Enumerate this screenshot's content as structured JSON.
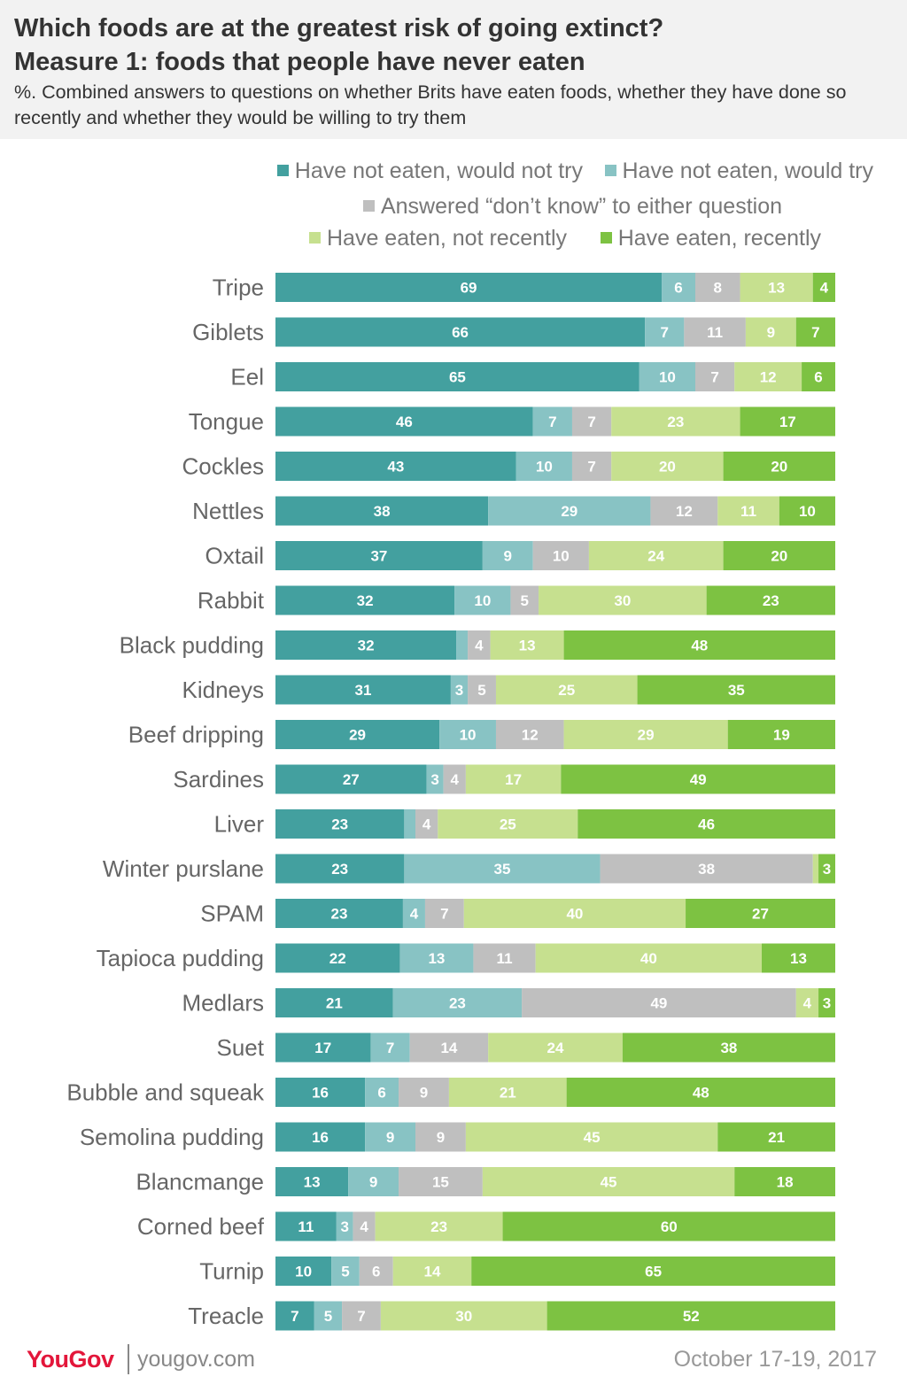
{
  "header": {
    "title_line1": "Which foods are at the greatest risk of going extinct?",
    "title_line2": "Measure 1: foods that people have never eaten",
    "subtitle": "%. Combined answers to questions on whether Brits have eaten foods, whether they have done so recently and whether they would be willing to try them"
  },
  "footer": {
    "brand": "YouGov",
    "url": "yougov.com",
    "date": "October 17-19, 2017"
  },
  "chart_data": {
    "type": "bar",
    "orientation": "horizontal",
    "stacked": true,
    "xlim": [
      0,
      100
    ],
    "categories": [
      "Tripe",
      "Giblets",
      "Eel",
      "Tongue",
      "Cockles",
      "Nettles",
      "Oxtail",
      "Rabbit",
      "Black pudding",
      "Kidneys",
      "Beef dripping",
      "Sardines",
      "Liver",
      "Winter purslane",
      "SPAM",
      "Tapioca pudding",
      "Medlars",
      "Suet",
      "Bubble and squeak",
      "Semolina pudding",
      "Blancmange",
      "Corned beef",
      "Turnip",
      "Treacle"
    ],
    "series": [
      {
        "name": "Have not eaten, would not try",
        "color": "#43a09f",
        "values": [
          69,
          66,
          65,
          46,
          43,
          38,
          37,
          32,
          32,
          31,
          29,
          27,
          23,
          23,
          23,
          22,
          21,
          17,
          16,
          16,
          13,
          11,
          10,
          7
        ]
      },
      {
        "name": "Have not eaten, would try",
        "color": "#88c3c4",
        "values": [
          6,
          7,
          10,
          7,
          10,
          29,
          9,
          10,
          2,
          3,
          10,
          3,
          2,
          35,
          4,
          13,
          23,
          7,
          6,
          9,
          9,
          3,
          5,
          5
        ]
      },
      {
        "name": "Answered “don’t know” to either question",
        "color": "#bfbfbf",
        "values": [
          8,
          11,
          7,
          7,
          7,
          12,
          10,
          5,
          4,
          5,
          12,
          4,
          4,
          38,
          7,
          11,
          49,
          14,
          9,
          9,
          15,
          4,
          6,
          7
        ]
      },
      {
        "name": "Have eaten, not recently",
        "color": "#c6e08f",
        "values": [
          13,
          9,
          12,
          23,
          20,
          11,
          24,
          30,
          13,
          25,
          29,
          17,
          25,
          1,
          40,
          40,
          4,
          24,
          21,
          45,
          45,
          23,
          14,
          30
        ]
      },
      {
        "name": "Have eaten, recently",
        "color": "#7dc242",
        "values": [
          4,
          7,
          6,
          17,
          20,
          10,
          20,
          23,
          48,
          35,
          19,
          49,
          46,
          3,
          27,
          13,
          3,
          38,
          48,
          21,
          18,
          60,
          65,
          52
        ]
      }
    ],
    "hidden_labels": [
      {
        "category": "Black pudding",
        "series": 1
      },
      {
        "category": "Liver",
        "series": 1
      },
      {
        "category": "Winter purslane",
        "series": 3
      }
    ]
  }
}
